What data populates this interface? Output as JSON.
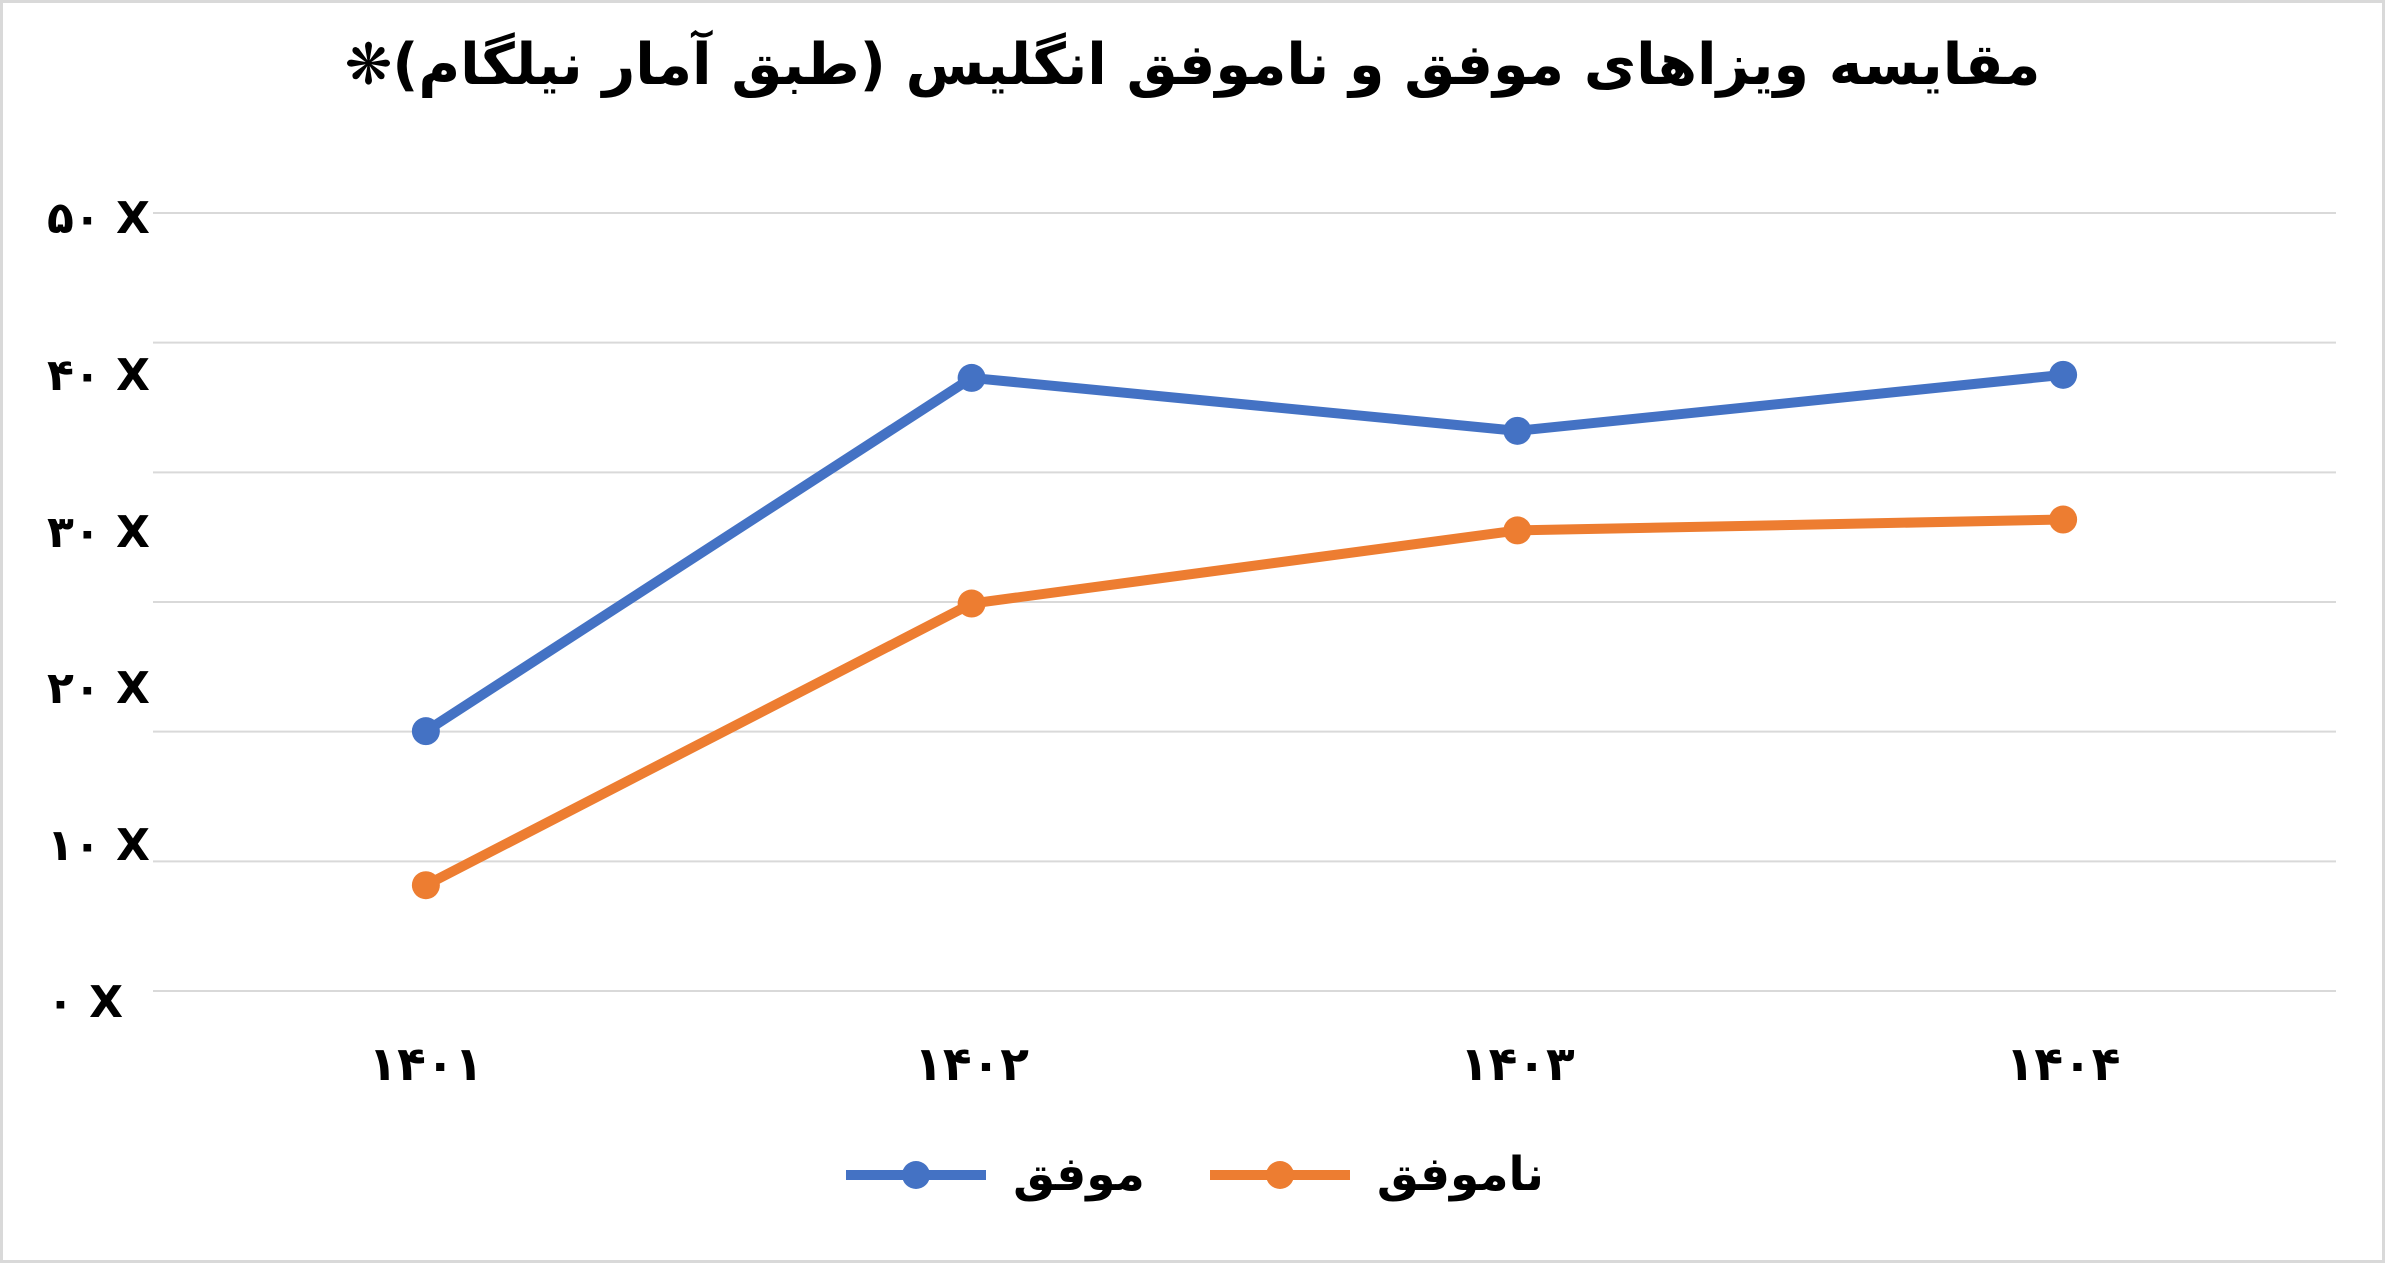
{
  "chart_data": {
    "type": "line",
    "title": "مقایسه ویزاهای موفق و ناموفق انگلیس (طبق آمار نیلگام)❋",
    "categories": [
      "۱۴۰۱",
      "۱۴۰۲",
      "۱۴۰۳",
      "۱۴۰۴"
    ],
    "series": [
      {
        "name": "موفق",
        "color": "#4472C4",
        "values": [
          16.7,
          39.4,
          36.0,
          39.6
        ]
      },
      {
        "name": "ناموفق",
        "color": "#ED7D31",
        "values": [
          6.8,
          24.9,
          29.6,
          30.3
        ]
      }
    ],
    "y_axis": {
      "tick_labels": [
        "۵۰ X",
        "۴۰ X",
        "۳۰ X",
        "۲۰ X",
        "۱۰ X",
        "۰ X"
      ],
      "tick_values": [
        50,
        40,
        30,
        20,
        10,
        0
      ],
      "min": 0,
      "max": 50
    },
    "gridlines": {
      "visible": true,
      "count": 7,
      "color": "#D9D9D9"
    },
    "legend": {
      "position": "bottom",
      "entries": [
        "موفق",
        "ناموفق"
      ]
    },
    "colors": {
      "background": "#FFFFFF",
      "border": "#D9D9D9",
      "text": "#000000"
    },
    "xlabel": "",
    "ylabel": ""
  }
}
